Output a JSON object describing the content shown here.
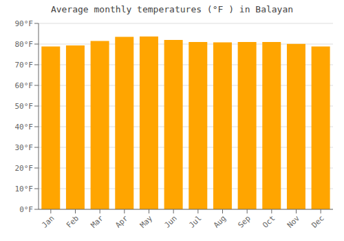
{
  "chart_data": {
    "type": "bar",
    "title": "Average monthly temperatures (°F ) in Balayan",
    "categories": [
      "Jan",
      "Feb",
      "Mar",
      "Apr",
      "May",
      "Jun",
      "Jul",
      "Aug",
      "Sep",
      "Oct",
      "Nov",
      "Dec"
    ],
    "values": [
      78.8,
      79.3,
      81.5,
      83.5,
      83.7,
      82.0,
      81.0,
      80.8,
      81.0,
      81.0,
      80.1,
      78.8
    ],
    "color": "#FFA500",
    "ylim": [
      0,
      90
    ],
    "yticks": [
      {
        "value": 0,
        "label": "0°F"
      },
      {
        "value": 10,
        "label": "10°F"
      },
      {
        "value": 20,
        "label": "20°F"
      },
      {
        "value": 30,
        "label": "30°F"
      },
      {
        "value": 40,
        "label": "40°F"
      },
      {
        "value": 50,
        "label": "50°F"
      },
      {
        "value": 60,
        "label": "60°F"
      },
      {
        "value": 70,
        "label": "70°F"
      },
      {
        "value": 80,
        "label": "80°F"
      },
      {
        "value": 90,
        "label": "90°F"
      }
    ],
    "grid": true
  }
}
